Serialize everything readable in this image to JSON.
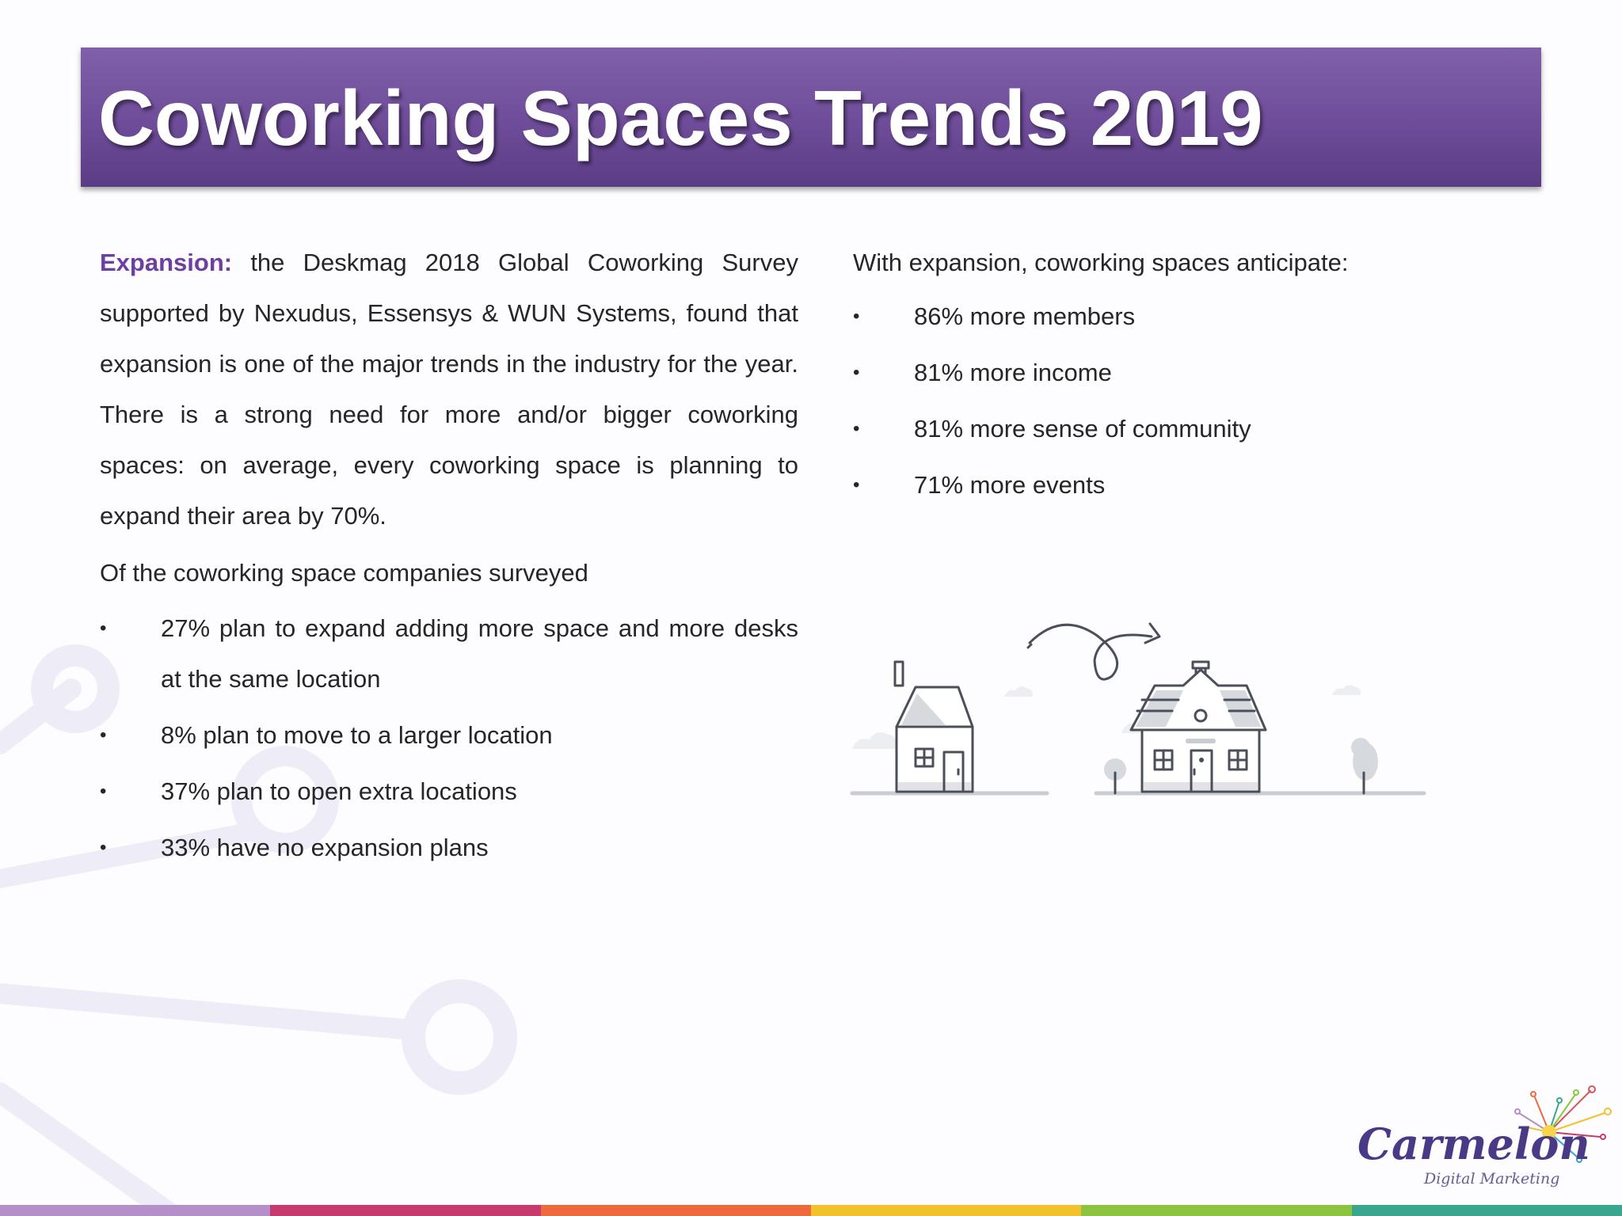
{
  "header": {
    "title": "Coworking Spaces Trends 2019"
  },
  "left": {
    "lead": "Expansion:",
    "paragraph": " the Deskmag 2018 Global Coworking Survey supported by Nexudus, Essensys & WUN Systems, found that expansion is one of the major trends in the industry for the year. There is a strong need for more and/or bigger coworking spaces: on average, every coworking space is planning to expand their area by 70%.",
    "subheading": "Of the coworking space companies surveyed",
    "bullets": [
      "27% plan to expand adding more space and more desks at the same location",
      "8% plan to move to a larger location",
      "37% plan to open extra locations",
      "33% have no expansion plans"
    ]
  },
  "right": {
    "intro": "With expansion, coworking spaces anticipate:",
    "bullets": [
      "86% more members",
      "81% more income",
      "81% more sense of community",
      "71% more events"
    ]
  },
  "logo": {
    "name": "Carmelon",
    "tagline": "Digital Marketing"
  },
  "colors": {
    "title_bar": "#6e4c99",
    "accent": "#6d3fa0",
    "stripe": [
      "#b48fc9",
      "#c8396d",
      "#ec6a3c",
      "#f2c12e",
      "#8cc43f",
      "#3ba68e"
    ]
  }
}
